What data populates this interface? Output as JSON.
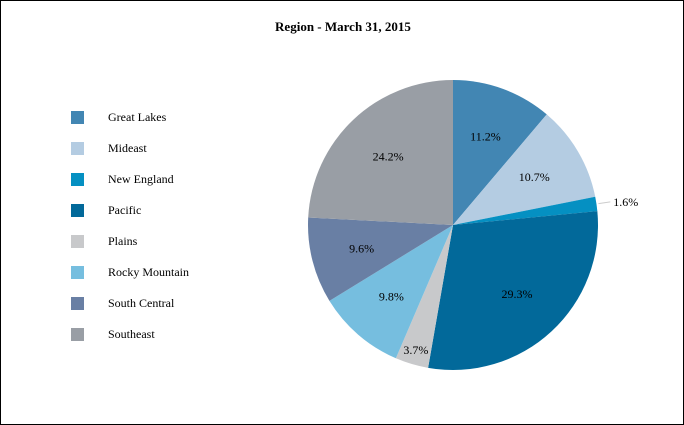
{
  "chart_data": {
    "type": "pie",
    "title": "Region - March 31, 2015",
    "legend_position": "left",
    "slices": [
      {
        "name": "Great Lakes",
        "value": 11.2,
        "label": "11.2%",
        "color": "#4286b3"
      },
      {
        "name": "Mideast",
        "value": 10.7,
        "label": "10.7%",
        "color": "#b4cce2"
      },
      {
        "name": "New England",
        "value": 1.6,
        "label": "1.6%",
        "color": "#0590c2"
      },
      {
        "name": "Pacific",
        "value": 29.3,
        "label": "29.3%",
        "color": "#02699a"
      },
      {
        "name": "Plains",
        "value": 3.7,
        "label": "3.7%",
        "color": "#c8c9cb"
      },
      {
        "name": "Rocky Mountain",
        "value": 9.8,
        "label": "9.8%",
        "color": "#76bedf"
      },
      {
        "name": "South Central",
        "value": 9.6,
        "label": "9.6%",
        "color": "#697fa4"
      },
      {
        "name": "Southeast",
        "value": 24.2,
        "label": "24.2%",
        "color": "#999ea5"
      }
    ]
  }
}
